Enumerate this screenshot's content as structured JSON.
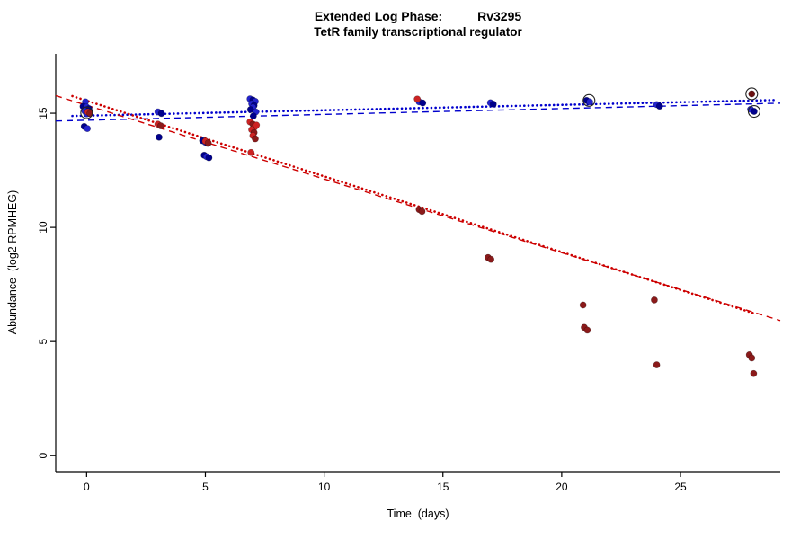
{
  "title": {
    "line1": "Extended Log Phase:          Rv3295",
    "line2": "TetR family transcriptional regulator"
  },
  "chart_data": {
    "type": "scatter",
    "title": "Extended Log Phase:          Rv3295",
    "subtitle": "TetR family transcriptional regulator",
    "xlabel": "Time  (days)",
    "ylabel": "Abundance  (log2 RPMHEG)",
    "xlim": [
      -1.3,
      29.2
    ],
    "ylim": [
      -0.7,
      17.6
    ],
    "xticks": [
      0,
      5,
      10,
      15,
      20,
      25
    ],
    "yticks": [
      0,
      5,
      10,
      15
    ],
    "grid": false,
    "series": [
      {
        "name": "blue-series",
        "color": "#2323cd",
        "points": [
          [
            -0.05,
            15.5,
            "#2323cd"
          ],
          [
            -0.15,
            15.3,
            "#00008b"
          ],
          [
            0.0,
            15.27,
            "#2323cd"
          ],
          [
            0.1,
            15.2,
            "#00008b"
          ],
          [
            -0.08,
            15.1,
            "#2323cd"
          ],
          [
            0.05,
            15.04,
            "#00008b"
          ],
          [
            0.0,
            14.97,
            "#2323cd"
          ],
          [
            -0.1,
            14.42,
            "#00008b"
          ],
          [
            0.03,
            14.33,
            "#2323cd"
          ],
          [
            3.0,
            15.06,
            "#2323cd"
          ],
          [
            3.15,
            14.99,
            "#00008b"
          ],
          [
            3.05,
            13.95,
            "#00008b"
          ],
          [
            4.88,
            13.8,
            "#00008b"
          ],
          [
            5.0,
            13.73,
            "#2323cd"
          ],
          [
            5.1,
            13.68,
            "#00008b"
          ],
          [
            4.95,
            13.16,
            "#00008b"
          ],
          [
            5.05,
            13.1,
            "#2323cd"
          ],
          [
            5.15,
            13.05,
            "#00008b"
          ],
          [
            6.88,
            15.63,
            "#2323cd"
          ],
          [
            7.0,
            15.58,
            "#00008b"
          ],
          [
            7.1,
            15.52,
            "#2323cd"
          ],
          [
            6.95,
            15.42,
            "#2323cd"
          ],
          [
            7.05,
            15.34,
            "#00008b"
          ],
          [
            7.0,
            15.26,
            "#2323cd"
          ],
          [
            6.9,
            15.16,
            "#00008b"
          ],
          [
            7.12,
            15.06,
            "#2323cd"
          ],
          [
            7.02,
            14.88,
            "#00008b"
          ],
          [
            14.0,
            15.5,
            "#2323cd"
          ],
          [
            14.15,
            15.45,
            "#00008b"
          ],
          [
            17.0,
            15.46,
            "#2323cd"
          ],
          [
            17.12,
            15.4,
            "#00008b"
          ],
          [
            21.05,
            15.56,
            "#00008b"
          ],
          [
            21.18,
            15.5,
            "#2323cd"
          ],
          [
            24.0,
            15.38,
            "#2323cd"
          ],
          [
            24.12,
            15.31,
            "#00008b"
          ],
          [
            27.95,
            15.17,
            "#2323cd"
          ],
          [
            28.1,
            15.08,
            "#00008b"
          ]
        ]
      },
      {
        "name": "red-series",
        "color": "#cd2323",
        "points": [
          [
            0.05,
            15.06,
            "#cd2323"
          ],
          [
            0.14,
            14.99,
            "#8b1a1a"
          ],
          [
            3.0,
            14.52,
            "#cd2323"
          ],
          [
            3.12,
            14.45,
            "#8b1a1a"
          ],
          [
            5.0,
            13.78,
            "#cd2323"
          ],
          [
            5.12,
            13.7,
            "#8b1a1a"
          ],
          [
            6.88,
            14.62,
            "#cd2323"
          ],
          [
            7.0,
            14.52,
            "#8b1a1a"
          ],
          [
            7.08,
            14.4,
            "#cd2323"
          ],
          [
            6.95,
            14.28,
            "#cd2323"
          ],
          [
            7.05,
            14.15,
            "#8b1a1a"
          ],
          [
            7.15,
            14.48,
            "#cd2323"
          ],
          [
            7.0,
            14.02,
            "#cd2323"
          ],
          [
            7.1,
            13.88,
            "#8b1a1a"
          ],
          [
            6.92,
            13.28,
            "#cd2323"
          ],
          [
            13.92,
            15.62,
            "#cd2323"
          ],
          [
            14.0,
            10.78,
            "#8b1a1a"
          ],
          [
            14.12,
            10.7,
            "#8b1a1a"
          ],
          [
            16.9,
            8.68,
            "#8b1a1a"
          ],
          [
            17.02,
            8.6,
            "#8b1a1a"
          ],
          [
            20.9,
            6.6,
            "#8b1a1a"
          ],
          [
            20.95,
            5.62,
            "#8b1a1a"
          ],
          [
            21.08,
            5.5,
            "#8b1a1a"
          ],
          [
            23.9,
            6.82,
            "#8b1a1a"
          ],
          [
            24.0,
            3.98,
            "#8b1a1a"
          ],
          [
            27.9,
            4.42,
            "#8b1a1a"
          ],
          [
            28.0,
            4.28,
            "#8b1a1a"
          ],
          [
            28.08,
            3.6,
            "#8b1a1a"
          ],
          [
            28.0,
            15.85,
            "#6b1010"
          ]
        ]
      }
    ],
    "flagged_points": [
      [
        0.0,
        15.02
      ],
      [
        21.15,
        15.56
      ],
      [
        28.0,
        15.85
      ],
      [
        28.1,
        15.08
      ]
    ],
    "trend_lines": [
      {
        "name": "blue-dashed-fit",
        "color": "#0000cd",
        "style": "dashed",
        "x1": -1.3,
        "y1": 14.66,
        "x2": 29.2,
        "y2": 15.44
      },
      {
        "name": "blue-dotted-fit",
        "color": "#0000cd",
        "style": "dotted",
        "x1": -0.6,
        "y1": 14.88,
        "x2": 29.0,
        "y2": 15.58
      },
      {
        "name": "red-dashed-fit",
        "color": "#cd0000",
        "style": "dashed",
        "x1": -1.3,
        "y1": 15.77,
        "x2": 29.2,
        "y2": 5.92
      },
      {
        "name": "red-dotted-fit",
        "color": "#cd0000",
        "style": "dotted",
        "x1": -0.6,
        "y1": 15.75,
        "x2": 28.2,
        "y2": 6.2
      }
    ]
  }
}
